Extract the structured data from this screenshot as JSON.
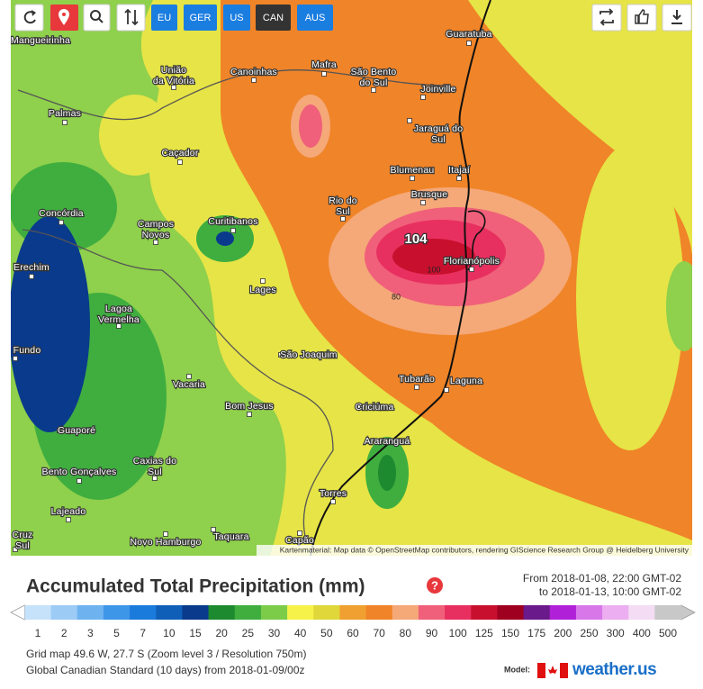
{
  "toolbar": {
    "models": [
      "EU",
      "GER",
      "US",
      "CAN",
      "AUS"
    ],
    "active_model": "CAN"
  },
  "map": {
    "places": [
      {
        "lines": [
          "Mangueirinha"
        ]
      },
      {
        "lines": [
          "Guaratuba"
        ]
      },
      {
        "lines": [
          "União",
          "da Vitória"
        ]
      },
      {
        "lines": [
          "Canoinhas"
        ]
      },
      {
        "lines": [
          "Mafra"
        ]
      },
      {
        "lines": [
          "São Bento",
          "do Sul"
        ]
      },
      {
        "lines": [
          "Joinville"
        ]
      },
      {
        "lines": [
          "Palmas"
        ]
      },
      {
        "lines": [
          "Jaraguá do",
          "Sul"
        ]
      },
      {
        "lines": [
          "Caçador"
        ]
      },
      {
        "lines": [
          "Blumenau"
        ]
      },
      {
        "lines": [
          "Itajaí"
        ]
      },
      {
        "lines": [
          "Brusque"
        ]
      },
      {
        "lines": [
          "Rio do",
          "Sul"
        ]
      },
      {
        "lines": [
          "Concórdia"
        ]
      },
      {
        "lines": [
          "Curitibanos"
        ]
      },
      {
        "lines": [
          "Campos",
          "Novos"
        ]
      },
      {
        "lines": [
          "Florianópolis"
        ]
      },
      {
        "lines": [
          "Erechim"
        ]
      },
      {
        "lines": [
          "Lages"
        ]
      },
      {
        "lines": [
          "Lagoa",
          "Vermelha"
        ]
      },
      {
        "lines": [
          "Fundo"
        ]
      },
      {
        "lines": [
          "São Joaquim"
        ]
      },
      {
        "lines": [
          "Vacaria"
        ]
      },
      {
        "lines": [
          "Tubarão"
        ]
      },
      {
        "lines": [
          "Laguna"
        ]
      },
      {
        "lines": [
          "Bom Jesus"
        ]
      },
      {
        "lines": [
          "Criciúma"
        ]
      },
      {
        "lines": [
          "Guaporé"
        ]
      },
      {
        "lines": [
          "Araranguá"
        ]
      },
      {
        "lines": [
          "Caxias do",
          "Sul"
        ]
      },
      {
        "lines": [
          "Bento Gonçalves"
        ]
      },
      {
        "lines": [
          "Torres"
        ]
      },
      {
        "lines": [
          "Lajeado"
        ]
      },
      {
        "lines": [
          "Cruz",
          "Sul"
        ]
      },
      {
        "lines": [
          "Novo Hamburgo"
        ]
      },
      {
        "lines": [
          "Taquara"
        ]
      },
      {
        "lines": [
          "Capão"
        ]
      }
    ],
    "max_label": "104",
    "contours": [
      "100",
      "80"
    ],
    "attribution": "Kartenmaterial: Map data © OpenStreetMap contributors, rendering GIScience Research Group @ Heidelberg University"
  },
  "legend": {
    "title": "Accumulated Total Precipitation (mm)",
    "from": "From 2018-01-08, 22:00 GMT-02",
    "to": "to 2018-01-13, 10:00 GMT-02",
    "scale": [
      {
        "value": 1,
        "color": "#c6e2fa"
      },
      {
        "value": 2,
        "color": "#9ccbf5"
      },
      {
        "value": 3,
        "color": "#6eb3f0"
      },
      {
        "value": 5,
        "color": "#3d96e8"
      },
      {
        "value": 7,
        "color": "#1b7bdc"
      },
      {
        "value": 10,
        "color": "#0f5fb8"
      },
      {
        "value": 15,
        "color": "#0a3a8c"
      },
      {
        "value": 20,
        "color": "#1d8a2f"
      },
      {
        "value": 25,
        "color": "#3fae3f"
      },
      {
        "value": 30,
        "color": "#7ccc4a"
      },
      {
        "value": 40,
        "color": "#f7f24a"
      },
      {
        "value": 50,
        "color": "#e0d83a"
      },
      {
        "value": 60,
        "color": "#f0a030"
      },
      {
        "value": 70,
        "color": "#f08428"
      },
      {
        "value": 80,
        "color": "#f5a878"
      },
      {
        "value": 90,
        "color": "#f0607a"
      },
      {
        "value": 100,
        "color": "#e83060"
      },
      {
        "value": 125,
        "color": "#c8102e"
      },
      {
        "value": 150,
        "color": "#a00020"
      },
      {
        "value": 175,
        "color": "#6a1a8a"
      },
      {
        "value": 200,
        "color": "#b020d8"
      },
      {
        "value": 250,
        "color": "#d878e8"
      },
      {
        "value": 300,
        "color": "#ecaef0"
      },
      {
        "value": 400,
        "color": "#f4dcf4"
      },
      {
        "value": 500,
        "color": "#c8c8c8"
      }
    ]
  },
  "info": [
    "Grid map 49.6 W, 27.7 S (Zoom level 3 / Resolution 750m)",
    "Global Canadian Standard (10 days) from 2018-01-09/00z"
  ],
  "model_label": "Model:",
  "brand": "weather.us"
}
